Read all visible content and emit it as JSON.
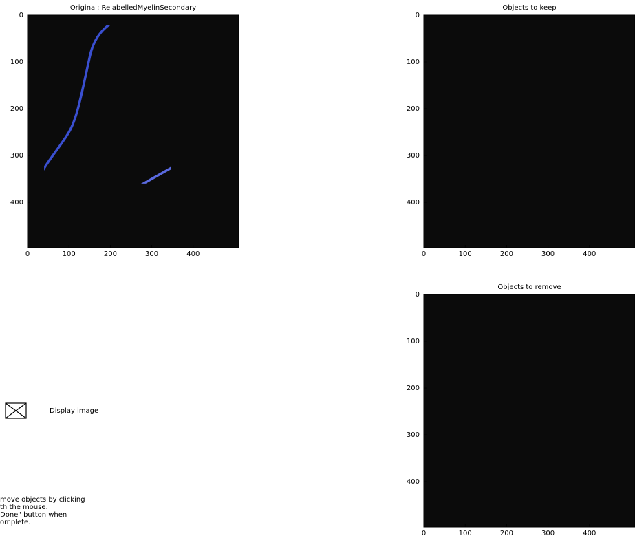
{
  "panels": [
    {
      "title": "Original: RelabelledMyelinSecondary",
      "xlim": [
        0,
        510
      ],
      "ylim": [
        0,
        497
      ],
      "xticks": [
        0,
        100,
        200,
        300,
        400
      ],
      "yticks": [
        0,
        100,
        200,
        300,
        400
      ]
    },
    {
      "title": "Objects to keep",
      "xlim": [
        0,
        510
      ],
      "ylim": [
        0,
        497
      ],
      "xticks": [
        0,
        100,
        200,
        300,
        400
      ],
      "yticks": [
        0,
        100,
        200,
        300,
        400
      ]
    },
    {
      "title": "Objects to remove",
      "xlim": [
        0,
        510
      ],
      "ylim": [
        0,
        497
      ],
      "xticks": [
        0,
        100,
        200,
        300,
        400
      ],
      "yticks": [
        0,
        100,
        200,
        300,
        400
      ]
    }
  ],
  "display_image": {
    "label": "Display image"
  },
  "instructions": [
    "move objects by clicking",
    "th the mouse.",
    "Done\" button when",
    "omplete."
  ]
}
